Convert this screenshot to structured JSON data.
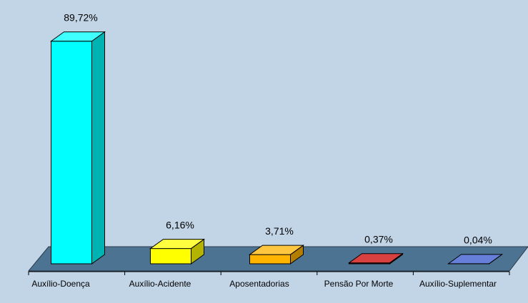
{
  "chart_data": {
    "type": "bar3d",
    "categories": [
      "Auxílio-Doença",
      "Auxílio-Acidente",
      "Aposentadorias",
      "Pensão Por Morte",
      "Auxílio-Suplementar"
    ],
    "values": [
      89.72,
      6.16,
      3.71,
      0.37,
      0.04
    ],
    "value_labels": [
      "89,72%",
      "6,16%",
      "3,71%",
      "0,37%",
      "0,04%"
    ],
    "colors": [
      "#00ffff",
      "#ffff00",
      "#ffb400",
      "#cc0000",
      "#3355cc"
    ]
  }
}
